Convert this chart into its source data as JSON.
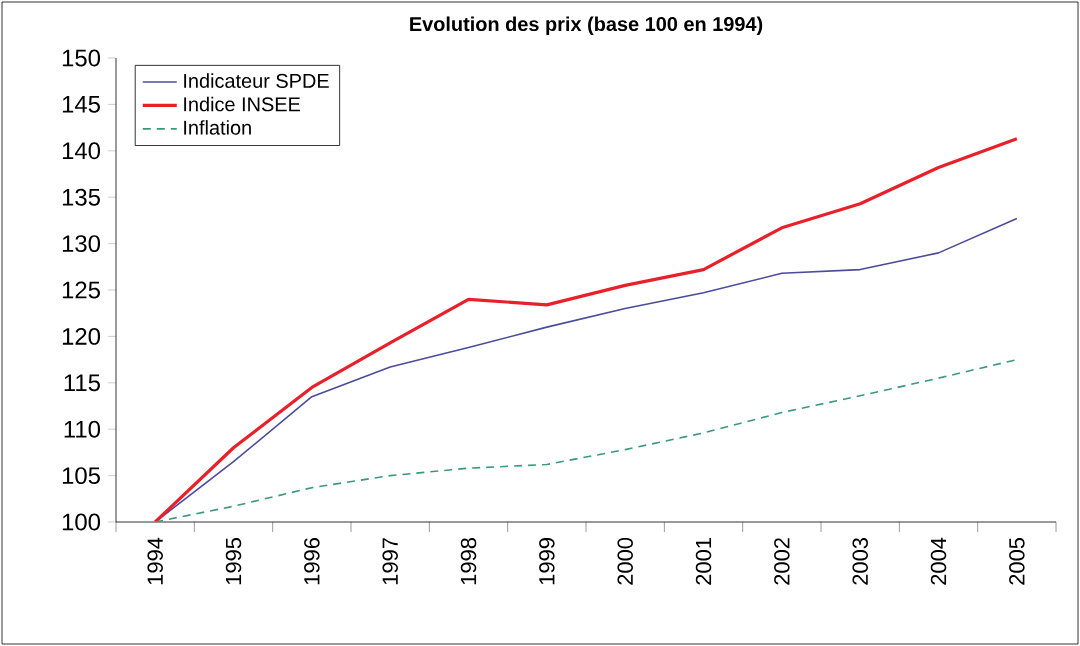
{
  "chart_data": {
    "type": "line",
    "title": "Evolution des prix (base 100 en 1994)",
    "categories": [
      "1994",
      "1995",
      "1996",
      "1997",
      "1998",
      "1999",
      "2000",
      "2001",
      "2002",
      "2003",
      "2004",
      "2005"
    ],
    "series": [
      {
        "name": "Indicateur SPDE",
        "color": "#4b4b9c",
        "values": [
          100,
          106.5,
          113.5,
          116.7,
          118.8,
          121,
          123,
          124.7,
          126.8,
          127.2,
          129,
          132.7
        ]
      },
      {
        "name": "Indice INSEE",
        "color": "#e8202a",
        "values": [
          100,
          108,
          114.5,
          119.3,
          124,
          123.4,
          125.5,
          127.2,
          131.7,
          134.3,
          138.2,
          141.3
        ]
      },
      {
        "name": "Inflation",
        "color": "#3a9a78",
        "line_style": "dashed",
        "values": [
          100,
          101.7,
          103.7,
          105,
          105.8,
          106.2,
          107.8,
          109.6,
          111.8,
          113.6,
          115.5,
          117.5
        ]
      }
    ],
    "ylim": [
      100,
      150
    ],
    "yticks": [
      100,
      105,
      110,
      115,
      120,
      125,
      130,
      135,
      140,
      145,
      150
    ],
    "legend": "top left",
    "grid": false,
    "marker": "none"
  }
}
